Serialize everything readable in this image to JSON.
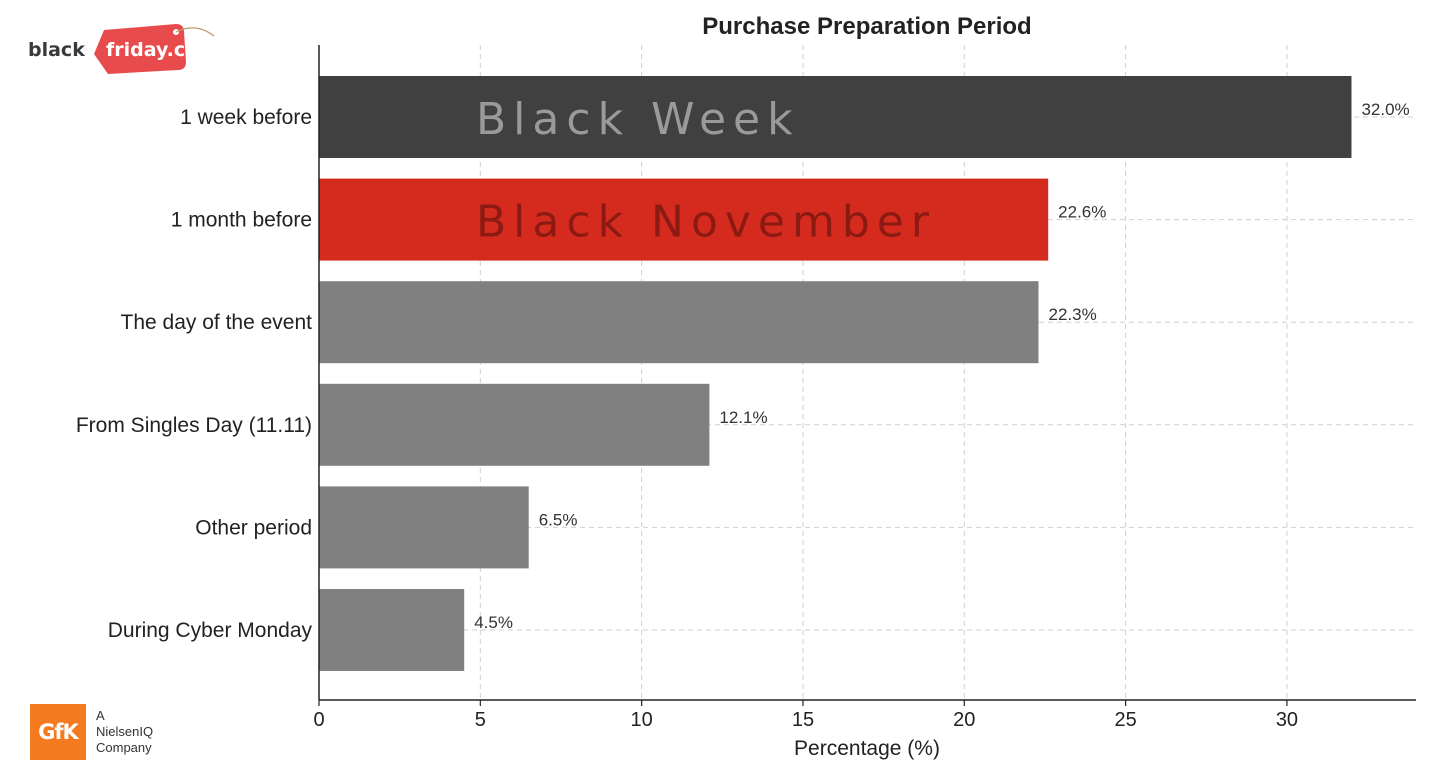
{
  "brand": {
    "blackfriday_dark": "black",
    "blackfriday_tag": "friday.ch",
    "gfk_logo": "GfK",
    "gfk_tagline": [
      "A",
      "NielsenIQ",
      "Company"
    ]
  },
  "chart_data": {
    "type": "bar",
    "orientation": "horizontal",
    "title": "Purchase Preparation Period",
    "xlabel": "Percentage (%)",
    "ylabel": "",
    "xlim": [
      0,
      34
    ],
    "xticks": [
      0,
      5,
      10,
      15,
      20,
      25,
      30
    ],
    "grid": true,
    "categories": [
      "1 week before",
      "1 month before",
      "The day of the event",
      "From Singles Day (11.11)",
      "Other period",
      "During Cyber Monday"
    ],
    "values": [
      32.0,
      22.6,
      22.3,
      12.1,
      6.5,
      4.5
    ],
    "value_labels": [
      "32.0%",
      "22.6%",
      "22.3%",
      "12.1%",
      "6.5%",
      "4.5%"
    ],
    "bar_colors": [
      "#404040",
      "#d52b1e",
      "#808080",
      "#808080",
      "#808080",
      "#808080"
    ],
    "bar_overlays": [
      {
        "index": 0,
        "text": "Black Week",
        "color": "#9a9a9a"
      },
      {
        "index": 1,
        "text": "Black November",
        "color": "#8a1a12"
      }
    ]
  }
}
